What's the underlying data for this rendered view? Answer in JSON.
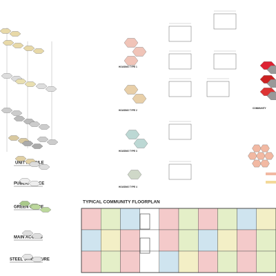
{
  "layers": [
    "UNIT MODULE",
    "PUBLIC SPACE",
    "GREEN SPACE",
    "MAIN ACCESS",
    "STEEL STRUCTURE"
  ],
  "housing_types": [
    "HOUSING TYPE 1",
    "HOUSING TYPE 2",
    "HOUSING TYPE 3",
    "HOUSING TYPE 4"
  ],
  "community_label": "COMMUNITY",
  "floorplan": {
    "title": "TYPICAL COMMUNITY FLOORPLAN"
  }
}
